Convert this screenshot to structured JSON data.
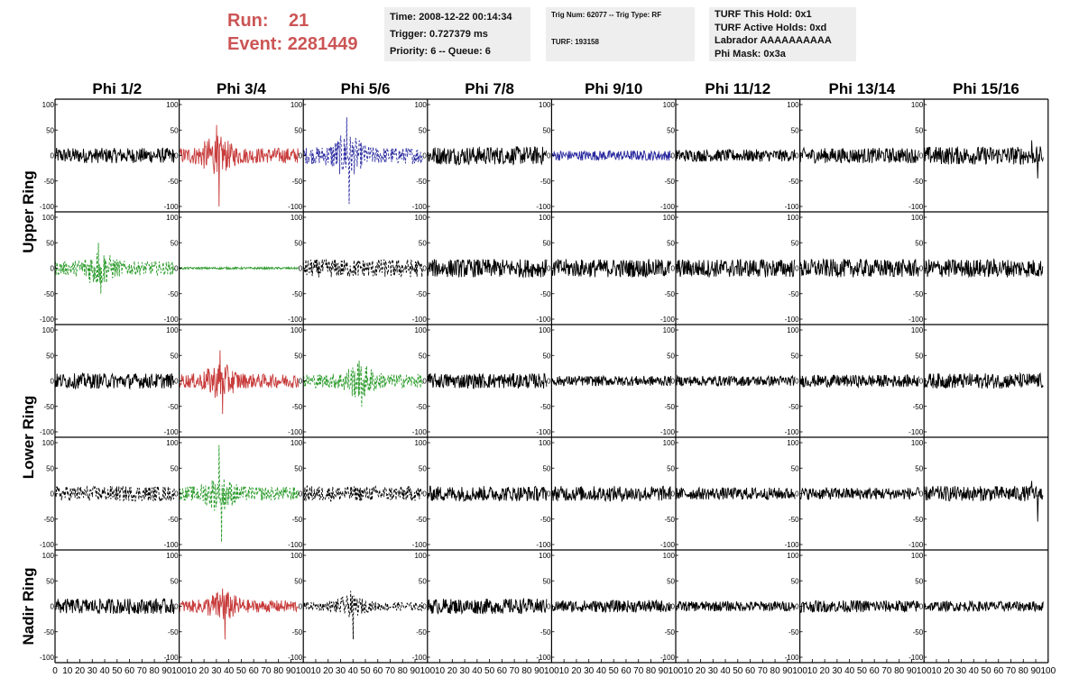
{
  "header": {
    "run_label": "Run:",
    "run_value": "21",
    "event_label": "Event:",
    "event_value": "2281449",
    "time": "Time: 2008-12-22 00:14:34",
    "trigger": "Trigger: 0.727379 ms",
    "priority": "Priority: 6 -- Queue: 6",
    "trig_num": "Trig Num: 62077 -- Trig Type: RF",
    "turf": "TURF: 193158",
    "turf_this_hold": "TURF This Hold: 0x1",
    "turf_active_holds": "TURF Active Holds: 0xd",
    "labrador": "Labrador AAAAAAAAAA",
    "phi_mask": "Phi Mask: 0x3a"
  },
  "colors": {
    "black": "#000000",
    "red": "#c83c3c",
    "blue": "#2a2aa0",
    "green": "#2a9a2a",
    "header_red": "#cc5555"
  },
  "chart_data": {
    "type": "line",
    "columns": [
      "Phi 1/2",
      "Phi 3/4",
      "Phi 5/6",
      "Phi 7/8",
      "Phi 9/10",
      "Phi 11/12",
      "Phi 13/14",
      "Phi 15/16"
    ],
    "row_groups": [
      {
        "label": "Upper Ring",
        "rows": [
          0,
          1
        ]
      },
      {
        "label": "Lower Ring",
        "rows": [
          2,
          3
        ]
      },
      {
        "label": "Nadir Ring",
        "rows": [
          4
        ]
      }
    ],
    "xlim": [
      0,
      100
    ],
    "ylim": [
      -100,
      100
    ],
    "x_ticks": [
      0,
      10,
      20,
      30,
      40,
      50,
      60,
      70,
      80,
      90,
      100
    ],
    "x_tick_labels": [
      "0",
      "10",
      "20",
      "30",
      "40",
      "50",
      "60",
      "70",
      "80",
      "90",
      "100"
    ],
    "y_ticks": [
      -100,
      -50,
      0,
      50,
      100
    ],
    "y_tick_labels": [
      "-100",
      "-50",
      "0",
      "50",
      "100"
    ],
    "samples": 240,
    "waveforms": [
      [
        {
          "color": "black",
          "style": "solid",
          "amp": 15,
          "span": [
            0,
            96
          ]
        },
        {
          "color": "red",
          "style": "solid",
          "amp": 28,
          "burst": 30,
          "peak": 60,
          "min": -100,
          "span": [
            0,
            96
          ]
        },
        {
          "color": "blue",
          "style": "dashed",
          "amp": 30,
          "burst": 35,
          "peak": 75,
          "min": -95,
          "span": [
            0,
            96
          ]
        },
        {
          "color": "black",
          "style": "solid",
          "amp": 18,
          "span": [
            0,
            96
          ]
        },
        {
          "color": "blue",
          "style": "solid",
          "amp": 10,
          "span": [
            0,
            96
          ]
        },
        {
          "color": "black",
          "style": "solid",
          "amp": 12,
          "span": [
            0,
            96
          ]
        },
        {
          "color": "black",
          "style": "solid",
          "amp": 15,
          "span": [
            0,
            96
          ]
        },
        {
          "color": "black",
          "style": "solid",
          "amp": 18,
          "peak": 30,
          "min": -45,
          "span": [
            0,
            96
          ]
        }
      ],
      [
        {
          "color": "green",
          "style": "dashed",
          "amp": 25,
          "burst": 35,
          "peak": 50,
          "min": -50,
          "span": [
            0,
            96
          ]
        },
        {
          "color": "green",
          "style": "solid",
          "amp": 2,
          "span": [
            0,
            96
          ]
        },
        {
          "color": "black",
          "style": "dashed",
          "amp": 18,
          "span": [
            0,
            96
          ]
        },
        {
          "color": "black",
          "style": "solid",
          "amp": 18,
          "span": [
            0,
            96
          ]
        },
        {
          "color": "black",
          "style": "solid",
          "amp": 18,
          "span": [
            0,
            96
          ]
        },
        {
          "color": "black",
          "style": "solid",
          "amp": 18,
          "span": [
            0,
            96
          ]
        },
        {
          "color": "black",
          "style": "solid",
          "amp": 18,
          "span": [
            0,
            96
          ]
        },
        {
          "color": "black",
          "style": "solid",
          "amp": 18,
          "span": [
            0,
            96
          ]
        }
      ],
      [
        {
          "color": "black",
          "style": "solid",
          "amp": 15,
          "span": [
            0,
            96
          ]
        },
        {
          "color": "red",
          "style": "solid",
          "amp": 25,
          "burst": 33,
          "peak": 60,
          "min": -65,
          "span": [
            0,
            96
          ]
        },
        {
          "color": "green",
          "style": "dashed",
          "amp": 25,
          "burst": 45,
          "peak": 40,
          "min": -50,
          "span": [
            0,
            96
          ]
        },
        {
          "color": "black",
          "style": "solid",
          "amp": 15,
          "span": [
            0,
            96
          ]
        },
        {
          "color": "black",
          "style": "solid",
          "amp": 10,
          "span": [
            0,
            96
          ]
        },
        {
          "color": "black",
          "style": "solid",
          "amp": 10,
          "span": [
            0,
            96
          ]
        },
        {
          "color": "black",
          "style": "solid",
          "amp": 12,
          "span": [
            0,
            96
          ]
        },
        {
          "color": "black",
          "style": "solid",
          "amp": 15,
          "span": [
            0,
            96
          ]
        }
      ],
      [
        {
          "color": "black",
          "style": "dashed",
          "amp": 15,
          "span": [
            0,
            96
          ]
        },
        {
          "color": "green",
          "style": "dashed",
          "amp": 25,
          "burst": 32,
          "peak": 95,
          "min": -95,
          "span": [
            0,
            96
          ]
        },
        {
          "color": "black",
          "style": "dashed",
          "amp": 15,
          "span": [
            0,
            96
          ]
        },
        {
          "color": "black",
          "style": "solid",
          "amp": 15,
          "span": [
            0,
            96
          ]
        },
        {
          "color": "black",
          "style": "solid",
          "amp": 15,
          "span": [
            0,
            96
          ]
        },
        {
          "color": "black",
          "style": "solid",
          "amp": 12,
          "span": [
            0,
            96
          ]
        },
        {
          "color": "black",
          "style": "solid",
          "amp": 12,
          "span": [
            0,
            96
          ]
        },
        {
          "color": "black",
          "style": "solid",
          "amp": 15,
          "peak": 25,
          "min": -55,
          "span": [
            0,
            96
          ]
        }
      ],
      [
        {
          "color": "black",
          "style": "solid",
          "amp": 15,
          "span": [
            0,
            96
          ]
        },
        {
          "color": "red",
          "style": "solid",
          "amp": 22,
          "burst": 35,
          "peak": 35,
          "min": -65,
          "span": [
            0,
            96
          ]
        },
        {
          "color": "black",
          "style": "dashed",
          "amp": 15,
          "burst": 38,
          "peak": 30,
          "min": -65,
          "span": [
            0,
            96
          ]
        },
        {
          "color": "black",
          "style": "solid",
          "amp": 15,
          "span": [
            0,
            96
          ]
        },
        {
          "color": "black",
          "style": "solid",
          "amp": 12,
          "span": [
            0,
            96
          ]
        },
        {
          "color": "black",
          "style": "solid",
          "amp": 10,
          "span": [
            0,
            96
          ]
        },
        {
          "color": "black",
          "style": "solid",
          "amp": 12,
          "span": [
            0,
            96
          ]
        },
        {
          "color": "black",
          "style": "solid",
          "amp": 10,
          "span": [
            0,
            96
          ]
        }
      ]
    ]
  }
}
